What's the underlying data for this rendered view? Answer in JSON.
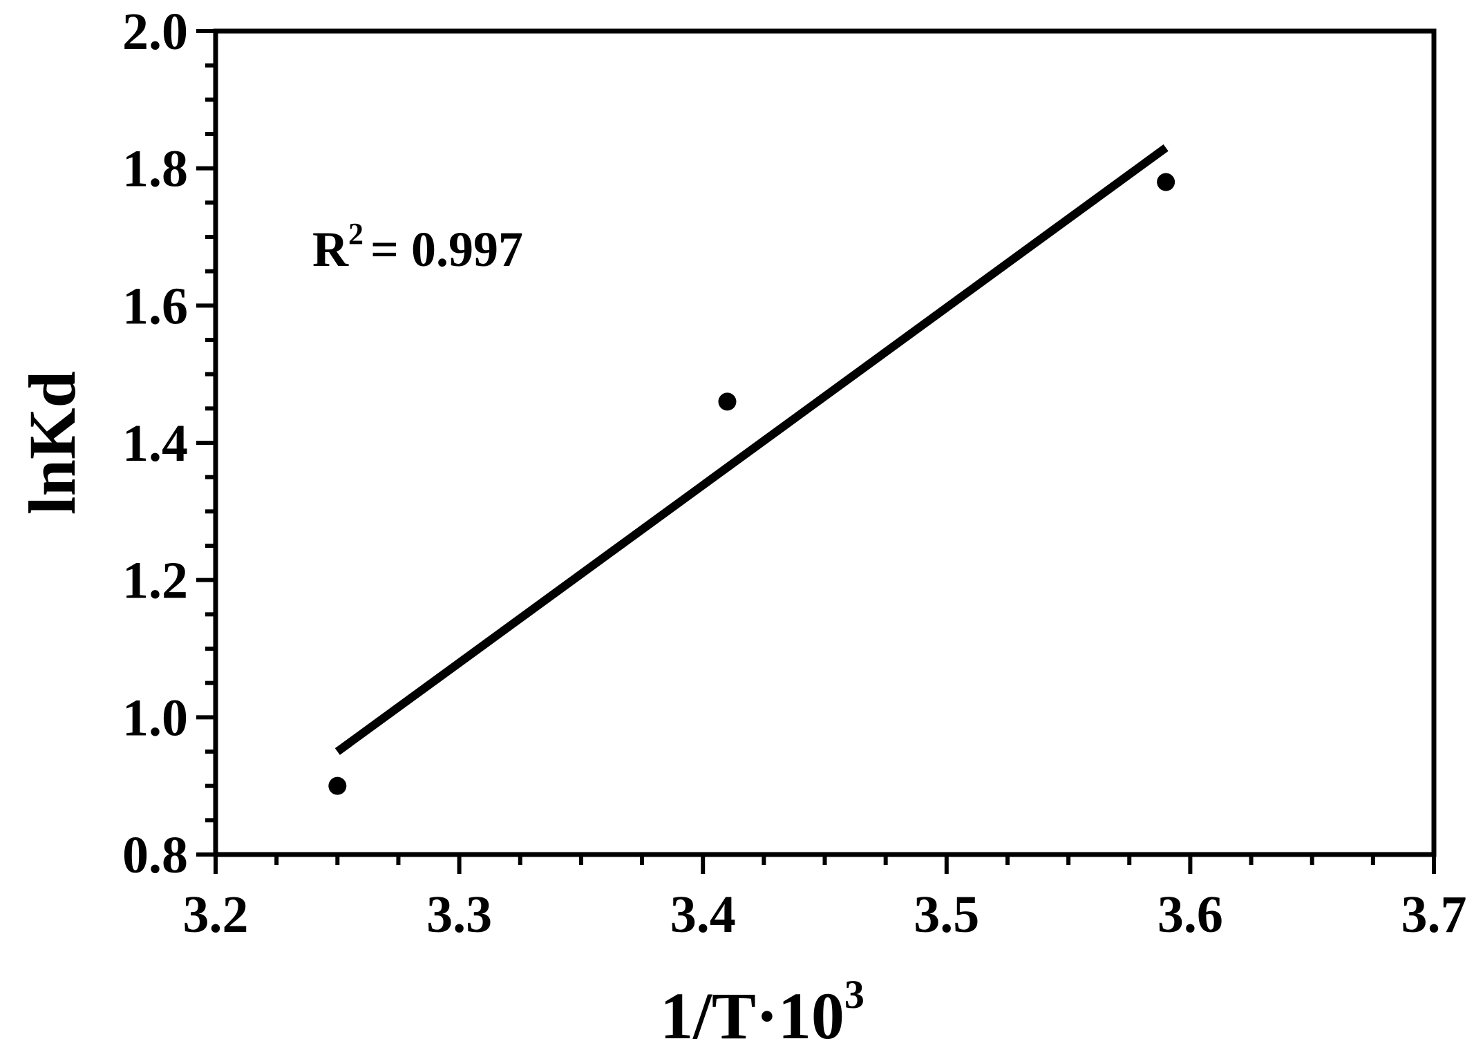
{
  "chart_data": {
    "type": "scatter",
    "title": "",
    "xlabel": "1/T·10",
    "xlabel_sup": "3",
    "ylabel": "lnKd",
    "xlim": [
      3.2,
      3.7
    ],
    "ylim": [
      0.8,
      2.0
    ],
    "xticks": [
      "3.2",
      "3.3",
      "3.4",
      "3.5",
      "3.6",
      "3.7"
    ],
    "yticks": [
      "0.8",
      "1.0",
      "1.2",
      "1.4",
      "1.6",
      "1.8",
      "2.0"
    ],
    "grid": false,
    "legend": "none",
    "points": [
      {
        "x": 3.25,
        "y": 0.9
      },
      {
        "x": 3.41,
        "y": 1.46
      },
      {
        "x": 3.59,
        "y": 1.78
      }
    ],
    "fit_line": {
      "x": [
        3.25,
        3.59
      ],
      "y": [
        0.95,
        1.83
      ]
    },
    "annotation": {
      "base": "R",
      "sup": "2",
      "rest": "= 0.997"
    },
    "color": "#000000"
  }
}
